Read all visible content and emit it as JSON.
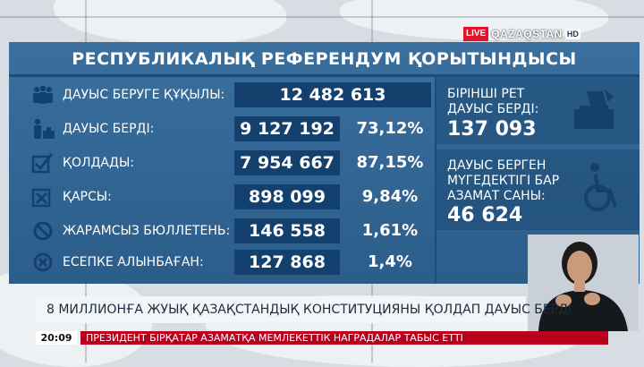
{
  "channel": {
    "live_label": "LIVE",
    "name": "QAZAQSTAN",
    "hd_label": "HD"
  },
  "panel": {
    "title": "РЕСПУБЛИКАЛЫҚ РЕФЕРЕНДУМ ҚОРЫТЫНДЫСЫ",
    "rows": [
      {
        "icon": "people-group-icon",
        "label": "ДАУЫС БЕРУГЕ ҚҰҚЫЛЫ:",
        "value": "12 482 613",
        "percent": ""
      },
      {
        "icon": "voter-person-icon",
        "label": "ДАУЫС БЕРДІ:",
        "value": "9 127 192",
        "percent": "73,12%"
      },
      {
        "icon": "checkbox-check-icon",
        "label": "ҚОЛДАДЫ:",
        "value": "7 954 667",
        "percent": "87,15%"
      },
      {
        "icon": "checkbox-cross-icon",
        "label": "ҚАРСЫ:",
        "value": "898 099",
        "percent": "9,84%"
      },
      {
        "icon": "prohibited-icon",
        "label": "ЖАРАМСЫЗ БЮЛЛЕТЕНЬ:",
        "value": "146 558",
        "percent": "1,61%"
      },
      {
        "icon": "cross-circle-icon",
        "label": "ЕСЕПКЕ АЛЫНБАҒАН:",
        "value": "127 868",
        "percent": "1,4%"
      }
    ],
    "first_time": {
      "text_line1": "БІРІНШІ РЕТ",
      "text_line2": "ДАУЫС БЕРДІ:",
      "value": "137 093",
      "icon": "ballot-box-icon"
    },
    "disabled": {
      "text_line1": "ДАУЫС БЕРГЕН",
      "text_line2": "МҮГЕДЕКТІГІ БАР",
      "text_line3": "АЗАМАТ САНЫ:",
      "value": "46 624",
      "icon": "wheelchair-icon"
    }
  },
  "lower_third": {
    "headline": "8 МИЛЛИОНҒА ЖУЫҚ ҚАЗАҚСТАНДЫҚ КОНСТИТУЦИЯНЫ ҚОЛДАП ДАУЫС БЕРДІ"
  },
  "ticker": {
    "time": "20:09",
    "text": "ПРЕЗИДЕНТ БІРҚАТАР АЗАМАТҚА МЕМЛЕКЕТТІК НАГРАДАЛАР ТАБЫС ЕТТІ"
  },
  "colors": {
    "panel_blue": "#2c5d8a",
    "value_box": "#13406d",
    "live_red": "#e3122a",
    "ticker_red": "#b8001c"
  }
}
